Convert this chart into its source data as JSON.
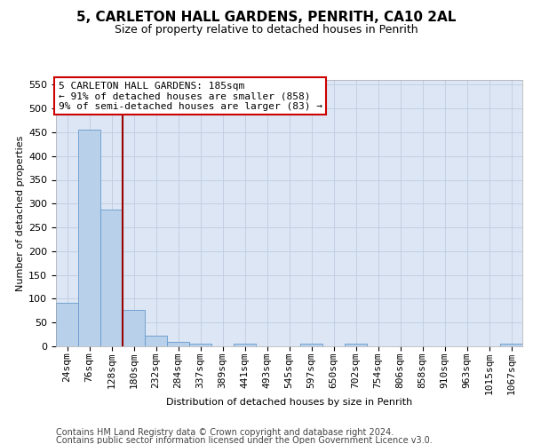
{
  "title": "5, CARLETON HALL GARDENS, PENRITH, CA10 2AL",
  "subtitle": "Size of property relative to detached houses in Penrith",
  "xlabel": "Distribution of detached houses by size in Penrith",
  "ylabel": "Number of detached properties",
  "footer_line1": "Contains HM Land Registry data © Crown copyright and database right 2024.",
  "footer_line2": "Contains public sector information licensed under the Open Government Licence v3.0.",
  "bin_labels": [
    "24sqm",
    "76sqm",
    "128sqm",
    "180sqm",
    "232sqm",
    "284sqm",
    "337sqm",
    "389sqm",
    "441sqm",
    "493sqm",
    "545sqm",
    "597sqm",
    "650sqm",
    "702sqm",
    "754sqm",
    "806sqm",
    "858sqm",
    "910sqm",
    "963sqm",
    "1015sqm",
    "1067sqm"
  ],
  "bar_heights": [
    91,
    455,
    287,
    76,
    22,
    9,
    6,
    0,
    5,
    0,
    0,
    6,
    0,
    5,
    0,
    0,
    0,
    0,
    0,
    0,
    5
  ],
  "property_line_x": 2.5,
  "property_sqm": 185,
  "pct_smaller": 91,
  "n_smaller": 858,
  "pct_larger": 9,
  "n_larger": 83,
  "bar_color": "#b8d0ea",
  "bar_edge_color": "#6699cc",
  "line_color": "#990000",
  "annotation_box_edge": "#cc0000",
  "background_color": "#dce6f4",
  "ylim_max": 560,
  "yticks": [
    0,
    50,
    100,
    150,
    200,
    250,
    300,
    350,
    400,
    450,
    500,
    550
  ],
  "title_fontsize": 11,
  "subtitle_fontsize": 9,
  "axis_label_fontsize": 8,
  "tick_fontsize": 8,
  "annotation_fontsize": 8,
  "footer_fontsize": 7
}
